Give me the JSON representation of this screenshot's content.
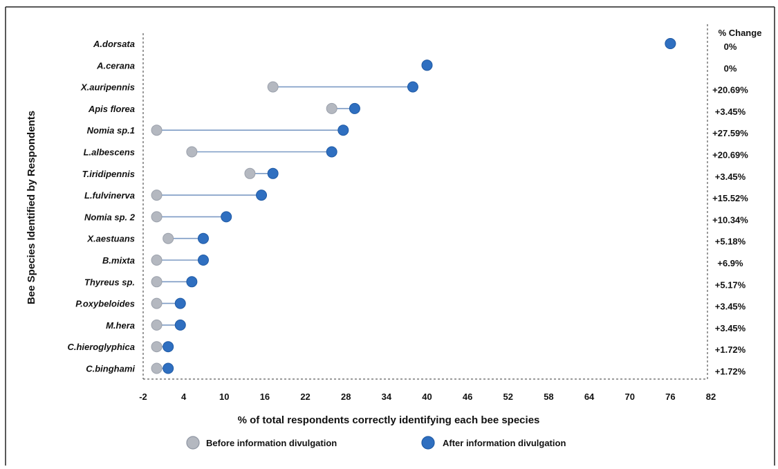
{
  "chart_data": {
    "type": "dumbbell",
    "xlabel": "% of total respondents correctly identifying each bee species",
    "ylabel": "Bee Species Identified by Respondents",
    "change_header": "% Change",
    "xlim": [
      -2,
      82
    ],
    "xticks": [
      -2,
      4,
      10,
      16,
      22,
      28,
      34,
      40,
      46,
      52,
      58,
      64,
      70,
      76,
      82
    ],
    "grid": false,
    "legend": {
      "position": "bottom",
      "before_label": "Before information divulgation",
      "after_label": "After information divulgation"
    },
    "colors": {
      "before": "#b4b8c0",
      "after": "#2f6fc0",
      "connector": "#7b9ac4",
      "axis": "#333333"
    },
    "species": [
      "A.dorsata",
      "A.cerana",
      "X.auripennis",
      "Apis florea",
      "Nomia sp.1",
      "L.albescens",
      "T.iridipennis",
      "L.fulvinerva",
      "Nomia sp. 2",
      "X.aestuans",
      "B.mixta",
      "Thyreus sp.",
      "P.oxybeloides",
      "M.hera",
      "C.hieroglyphica",
      "C.binghami"
    ],
    "series": [
      {
        "name": "Before information divulgation",
        "values": [
          76,
          40,
          17.2,
          25.9,
          0,
          5.2,
          13.8,
          0,
          0,
          1.7,
          0,
          0,
          0,
          0,
          0,
          0
        ]
      },
      {
        "name": "After information divulgation",
        "values": [
          76,
          40,
          37.9,
          29.3,
          27.6,
          25.9,
          17.2,
          15.5,
          10.3,
          6.9,
          6.9,
          5.2,
          3.5,
          3.5,
          1.7,
          1.7
        ]
      }
    ],
    "changes": [
      "0%",
      "0%",
      "+20.69%",
      "+3.45%",
      "+27.59%",
      "+20.69%",
      "+3.45%",
      "+15.52%",
      "+10.34%",
      "+5.18%",
      "+6.9%",
      "+5.17%",
      "+3.45%",
      "+3.45%",
      "+1.72%",
      "+1.72%"
    ]
  }
}
